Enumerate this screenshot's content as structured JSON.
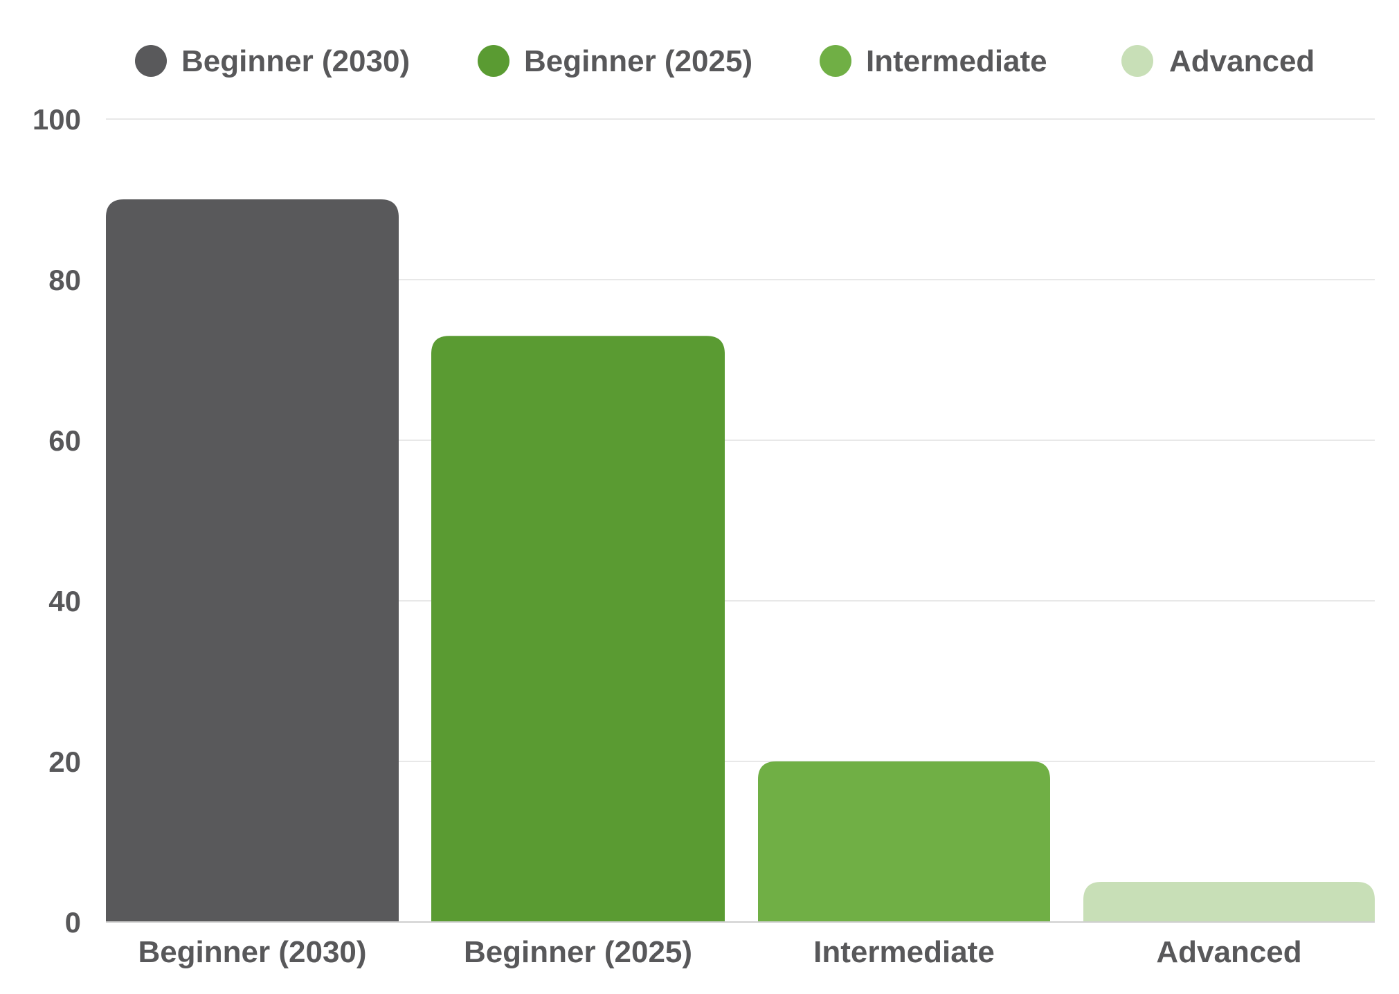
{
  "chart_data": {
    "type": "bar",
    "title": "",
    "xlabel": "",
    "ylabel": "",
    "categories": [
      "Beginner (2030)",
      "Beginner (2025)",
      "Intermediate",
      "Advanced"
    ],
    "values": [
      90,
      73,
      20,
      5
    ],
    "colors": [
      "#59595b",
      "#5a9b32",
      "#70af45",
      "#c8dfb7"
    ],
    "ylim": [
      0,
      100
    ],
    "yticks": [
      0,
      20,
      40,
      60,
      80,
      100
    ],
    "grid": true,
    "legend": {
      "placement": "top",
      "entries": [
        "Beginner (2030)",
        "Beginner (2025)",
        "Intermediate",
        "Advanced"
      ]
    }
  }
}
